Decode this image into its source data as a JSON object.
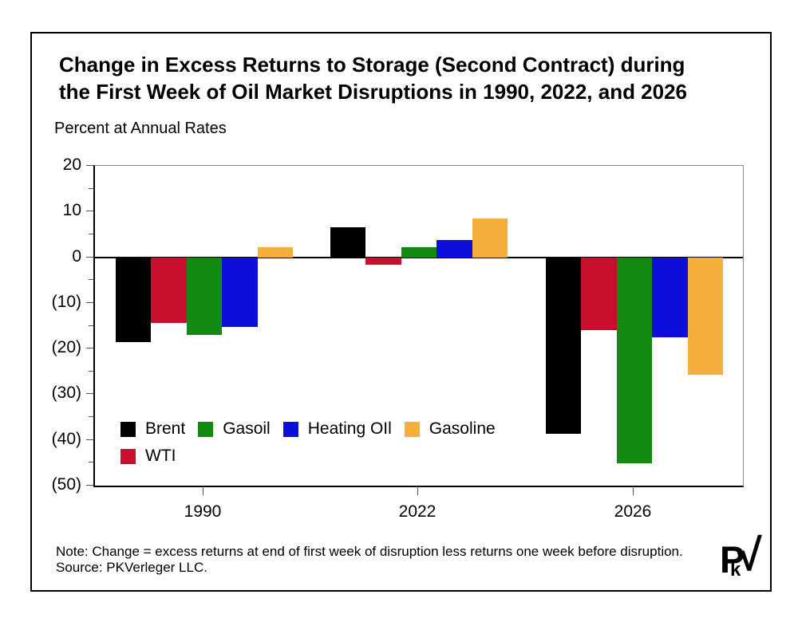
{
  "page": {
    "title_lines": [
      "Change in Excess Returns to Storage (Second Contract) during",
      "the First Week of Oil Market Disruptions in 1990, 2022, and 2026"
    ],
    "subtitle": "Percent at Annual Rates",
    "note": "Note: Change = excess returns at end of first week of disruption less returns one week before disruption.",
    "source": "Source: PKVerleger LLC.",
    "logo": {
      "p": "P",
      "k": "k",
      "v": "√"
    }
  },
  "chart_data": {
    "type": "bar",
    "title": "Change in Excess Returns to Storage (Second Contract) during the First Week of Oil Market Disruptions in 1990, 2022, and 2026",
    "ylabel": "Percent at Annual Rates",
    "categories": [
      "1990",
      "2022",
      "2026"
    ],
    "series": [
      {
        "name": "Brent",
        "color": "#000000",
        "values": [
          -18.5,
          6.5,
          -38.6
        ]
      },
      {
        "name": "WTI",
        "color": "#C8102E",
        "values": [
          -14.4,
          -1.7,
          -16.0
        ]
      },
      {
        "name": "Gasoil",
        "color": "#128A12",
        "values": [
          -17.0,
          2.2,
          -45.1
        ]
      },
      {
        "name": "Heating OIl",
        "color": "#0D0DDC",
        "values": [
          -15.3,
          3.8,
          -17.6
        ]
      },
      {
        "name": "Gasoline",
        "color": "#F4AF3D",
        "values": [
          2.2,
          8.4,
          -25.7
        ]
      }
    ],
    "ylim": [
      -50,
      20
    ],
    "grid": false,
    "legend_position": "inside-lower-left",
    "legend_rows": [
      [
        "Brent",
        "Gasoil",
        "Heating OIl",
        "Gasoline"
      ],
      [
        "WTI"
      ]
    ],
    "y_axis": {
      "major": [
        {
          "value": 20,
          "label": "20"
        },
        {
          "value": 10,
          "label": "10"
        },
        {
          "value": 0,
          "label": "0"
        },
        {
          "value": -10,
          "label": "(10)"
        },
        {
          "value": -20,
          "label": "(20)"
        },
        {
          "value": -30,
          "label": "(30)"
        },
        {
          "value": -40,
          "label": "(40)"
        },
        {
          "value": -50,
          "label": "(50)"
        }
      ],
      "minor": [
        15,
        5,
        -5,
        -15,
        -25,
        -35,
        -45
      ]
    }
  }
}
